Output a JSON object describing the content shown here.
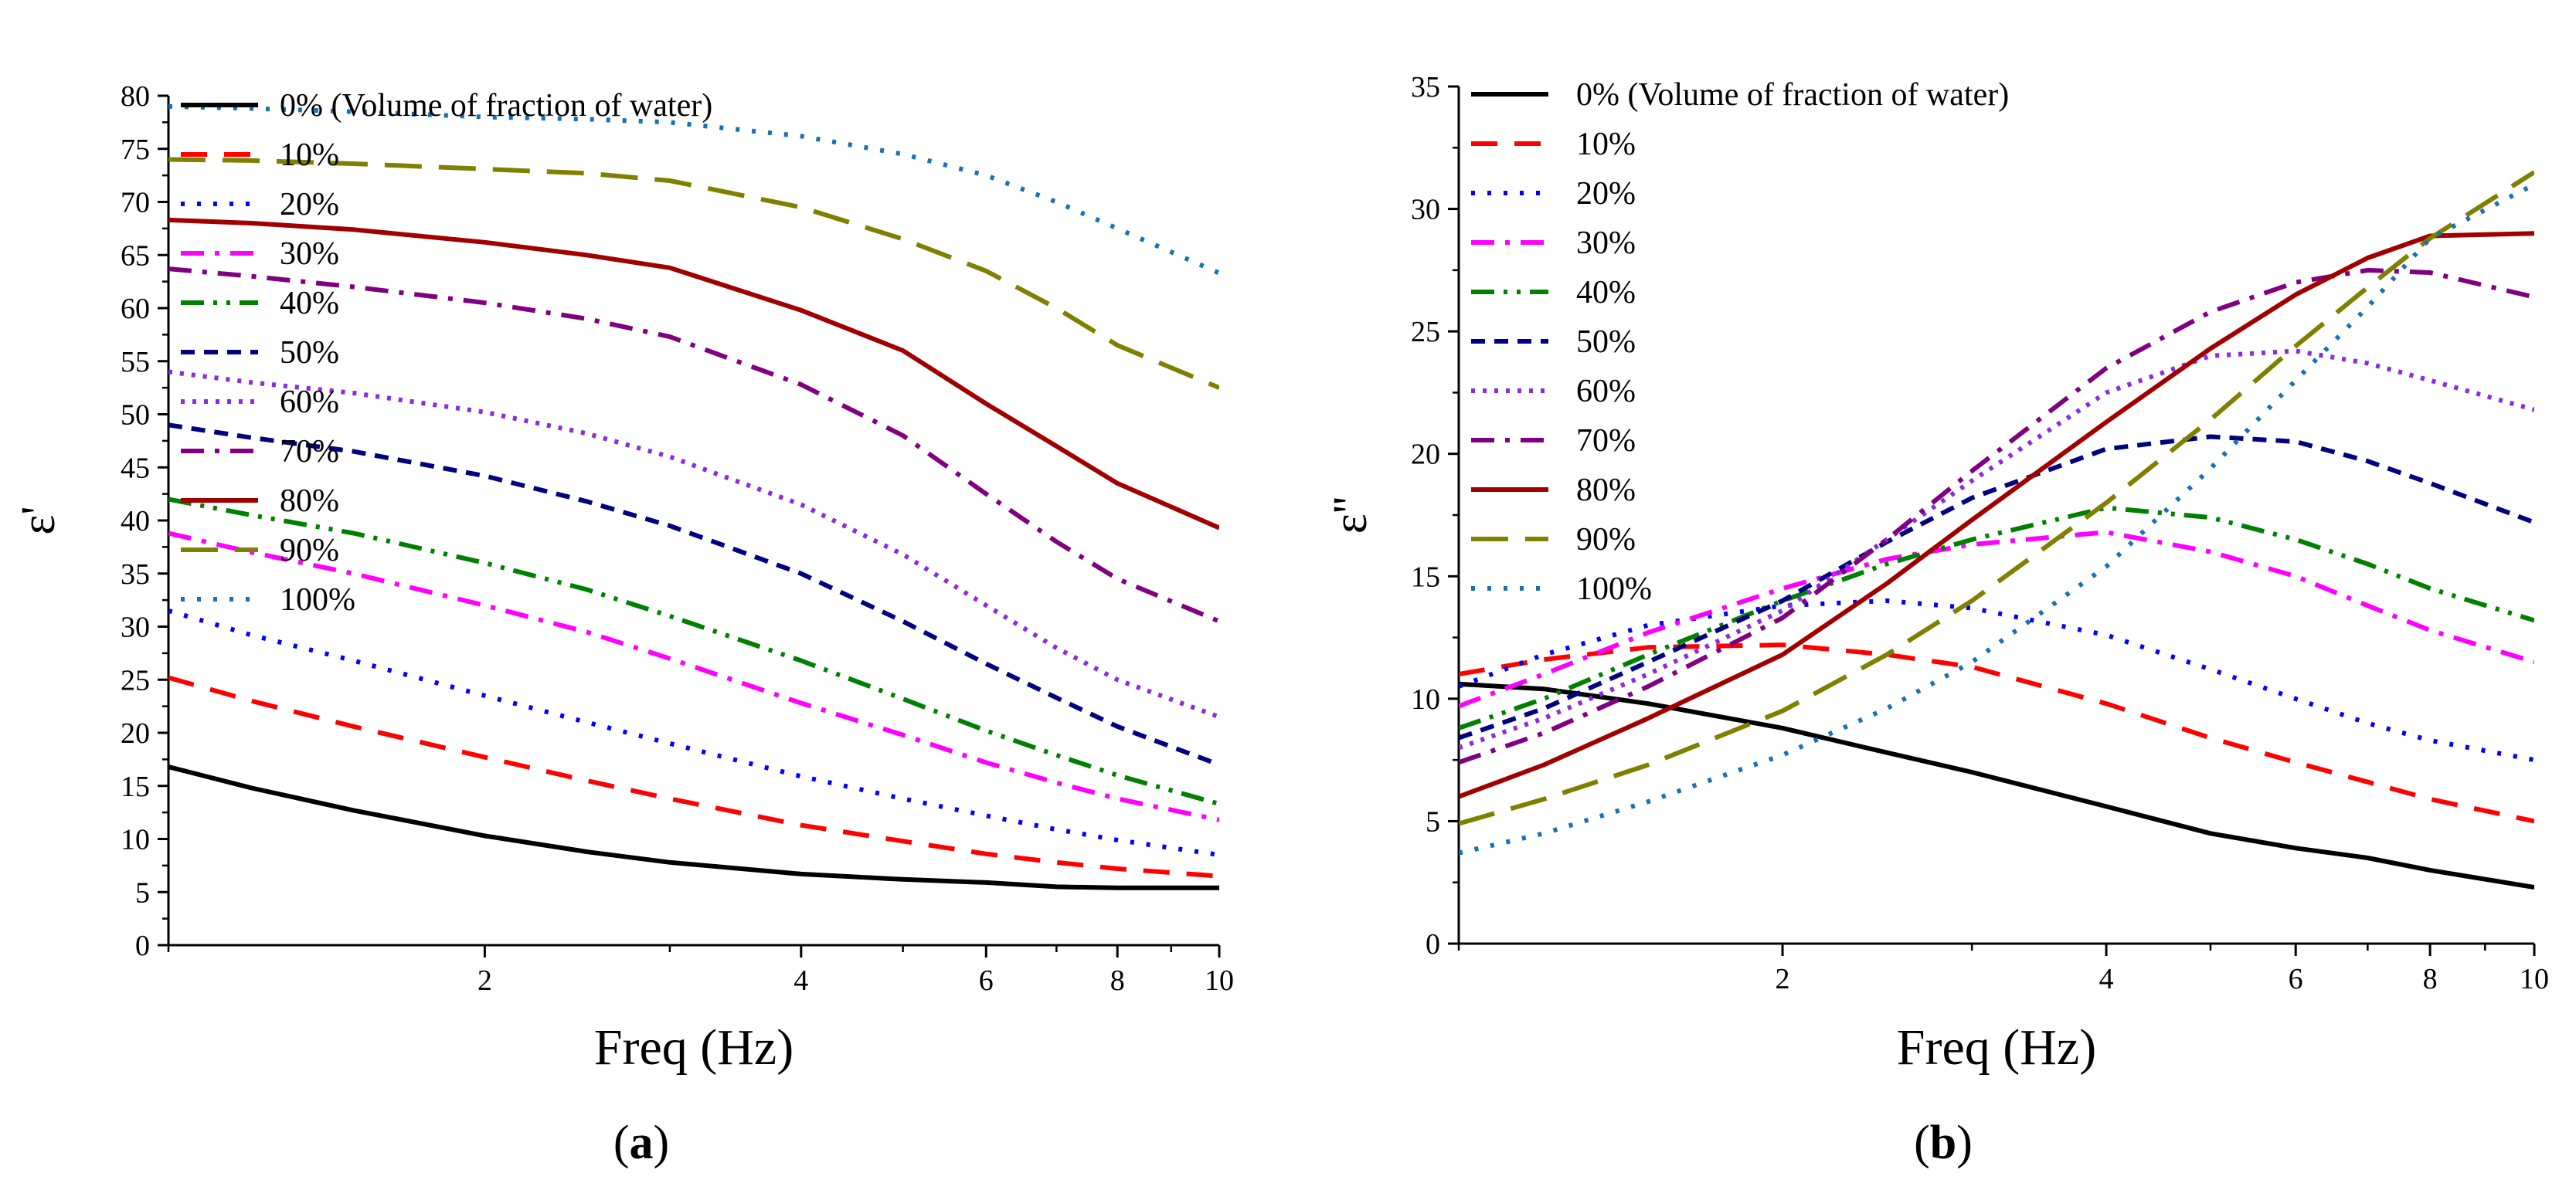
{
  "chart_data": [
    {
      "type": "line",
      "panel_label": "(a)",
      "xlabel": "Freq (Hz)",
      "ylabel": "ε'",
      "x_scale": "log",
      "xlim": [
        1,
        10
      ],
      "ylim": [
        0,
        80
      ],
      "x_ticks": [
        2,
        4,
        6,
        8,
        10
      ],
      "x_tick_labels": [
        "2",
        "4",
        "6",
        "8",
        "10"
      ],
      "y_ticks": [
        0,
        5,
        10,
        15,
        20,
        25,
        30,
        35,
        40,
        45,
        50,
        55,
        60,
        65,
        70,
        75,
        80
      ],
      "y_tick_labels": [
        "0",
        "5",
        "10",
        "15",
        "20",
        "25",
        "30",
        "35",
        "40",
        "45",
        "50",
        "55",
        "60",
        "65",
        "70",
        "75",
        "80"
      ],
      "legend_position": "top-left",
      "x": [
        1,
        1.2,
        1.5,
        2,
        2.5,
        3,
        4,
        5,
        6,
        7,
        8,
        10
      ],
      "series": [
        {
          "name": "0% (Volume of fraction of water)",
          "color": "#000000",
          "dash": "solid",
          "values": [
            16.8,
            14.8,
            12.7,
            10.3,
            8.8,
            7.8,
            6.7,
            6.2,
            5.9,
            5.5,
            5.4,
            5.4
          ]
        },
        {
          "name": "10%",
          "color": "#ff0000",
          "dash": "dash",
          "values": [
            25.2,
            23.0,
            20.6,
            17.7,
            15.5,
            13.8,
            11.3,
            9.8,
            8.6,
            7.8,
            7.2,
            6.5
          ]
        },
        {
          "name": "20%",
          "color": "#0000ff",
          "dash": "dot",
          "values": [
            31.5,
            29.2,
            26.8,
            23.5,
            21.0,
            19.0,
            15.9,
            13.8,
            12.2,
            10.9,
            9.9,
            8.5
          ]
        },
        {
          "name": "30%",
          "color": "#ff00ff",
          "dash": "dashdot",
          "values": [
            38.8,
            37.0,
            35.0,
            32.0,
            29.5,
            27.0,
            22.8,
            19.8,
            17.2,
            15.3,
            13.8,
            11.8
          ]
        },
        {
          "name": "40%",
          "color": "#008000",
          "dash": "dashdotdot",
          "values": [
            42.0,
            40.5,
            38.8,
            36.0,
            33.5,
            31.0,
            26.8,
            23.2,
            20.2,
            17.9,
            16.0,
            13.3
          ]
        },
        {
          "name": "50%",
          "color": "#000080",
          "dash": "shortdash",
          "values": [
            49.0,
            47.8,
            46.5,
            44.2,
            41.8,
            39.5,
            35.0,
            30.5,
            26.5,
            23.3,
            20.6,
            17.0
          ]
        },
        {
          "name": "60%",
          "color": "#8a2be2",
          "dash": "shortdot",
          "values": [
            54.0,
            53.0,
            52.0,
            50.2,
            48.2,
            46.0,
            41.5,
            36.8,
            32.0,
            28.0,
            25.0,
            21.5
          ]
        },
        {
          "name": "70%",
          "color": "#800080",
          "dash": "dashdot",
          "values": [
            63.7,
            63.0,
            62.0,
            60.5,
            59.0,
            57.3,
            52.8,
            48.0,
            42.5,
            38.0,
            34.5,
            30.5
          ]
        },
        {
          "name": "80%",
          "color": "#a00000",
          "dash": "solid",
          "values": [
            68.3,
            68.0,
            67.4,
            66.2,
            65.0,
            63.8,
            59.8,
            56.0,
            51.0,
            47.0,
            43.5,
            39.3
          ]
        },
        {
          "name": "90%",
          "color": "#808000",
          "dash": "longdash",
          "values": [
            74.0,
            73.9,
            73.6,
            73.1,
            72.7,
            72.0,
            69.5,
            66.5,
            63.5,
            60.0,
            56.5,
            52.5
          ]
        },
        {
          "name": "100%",
          "color": "#1a6fb5",
          "dash": "dot",
          "values": [
            79.0,
            78.8,
            78.5,
            78.0,
            77.8,
            77.5,
            76.2,
            74.5,
            72.5,
            70.0,
            67.5,
            63.3
          ]
        }
      ]
    },
    {
      "type": "line",
      "panel_label": "(b)",
      "xlabel": "Freq (Hz)",
      "ylabel": "ε''",
      "x_scale": "log",
      "xlim": [
        1,
        10
      ],
      "ylim": [
        0,
        35
      ],
      "x_ticks": [
        2,
        4,
        6,
        8,
        10
      ],
      "x_tick_labels": [
        "2",
        "4",
        "6",
        "8",
        "10"
      ],
      "y_ticks": [
        0,
        5,
        10,
        15,
        20,
        25,
        30,
        35
      ],
      "y_tick_labels": [
        "0",
        "5",
        "10",
        "15",
        "20",
        "25",
        "30",
        "35"
      ],
      "legend_position": "top-left",
      "x": [
        1,
        1.2,
        1.5,
        2,
        2.5,
        3,
        4,
        5,
        6,
        7,
        8,
        10
      ],
      "series": [
        {
          "name": "0% (Volume of fraction of water)",
          "color": "#000000",
          "dash": "solid",
          "values": [
            10.6,
            10.4,
            9.8,
            8.8,
            7.8,
            7.0,
            5.6,
            4.5,
            3.9,
            3.5,
            3.0,
            2.3
          ]
        },
        {
          "name": "10%",
          "color": "#ff0000",
          "dash": "dash",
          "values": [
            11.0,
            11.6,
            12.1,
            12.2,
            11.8,
            11.3,
            9.8,
            8.4,
            7.4,
            6.6,
            5.9,
            5.0
          ]
        },
        {
          "name": "20%",
          "color": "#0000ff",
          "dash": "dot",
          "values": [
            10.5,
            11.8,
            13.0,
            13.8,
            14.0,
            13.7,
            12.6,
            11.2,
            10.0,
            9.0,
            8.3,
            7.5
          ]
        },
        {
          "name": "30%",
          "color": "#ff00ff",
          "dash": "dashdot",
          "values": [
            9.7,
            11.0,
            12.7,
            14.5,
            15.7,
            16.3,
            16.8,
            16.0,
            15.0,
            13.8,
            12.8,
            11.5
          ]
        },
        {
          "name": "40%",
          "color": "#008000",
          "dash": "dashdotdot",
          "values": [
            8.8,
            10.0,
            11.8,
            14.0,
            15.5,
            16.5,
            17.8,
            17.4,
            16.5,
            15.5,
            14.5,
            13.2
          ]
        },
        {
          "name": "50%",
          "color": "#000080",
          "dash": "shortdash",
          "values": [
            8.4,
            9.6,
            11.5,
            14.0,
            16.4,
            18.2,
            20.2,
            20.7,
            20.5,
            19.7,
            18.8,
            17.2
          ]
        },
        {
          "name": "60%",
          "color": "#8a2be2",
          "dash": "shortdot",
          "values": [
            8.0,
            9.2,
            11.0,
            13.6,
            16.5,
            18.9,
            22.5,
            24.0,
            24.2,
            23.7,
            23.0,
            21.8
          ]
        },
        {
          "name": "70%",
          "color": "#800080",
          "dash": "dashdot",
          "values": [
            7.4,
            8.6,
            10.5,
            13.3,
            16.5,
            19.3,
            23.5,
            25.8,
            27.0,
            27.5,
            27.4,
            26.4
          ]
        },
        {
          "name": "80%",
          "color": "#a00000",
          "dash": "solid",
          "values": [
            6.0,
            7.3,
            9.2,
            11.8,
            14.7,
            17.3,
            21.3,
            24.3,
            26.5,
            28.0,
            28.9,
            29.0
          ]
        },
        {
          "name": "90%",
          "color": "#808000",
          "dash": "longdash",
          "values": [
            4.9,
            5.9,
            7.3,
            9.5,
            11.8,
            14.0,
            18.0,
            21.4,
            24.4,
            26.8,
            28.8,
            31.5
          ]
        },
        {
          "name": "100%",
          "color": "#1a6fb5",
          "dash": "dot",
          "values": [
            3.7,
            4.5,
            5.8,
            7.7,
            9.6,
            11.5,
            15.4,
            19.4,
            23.0,
            26.0,
            28.8,
            31.0
          ]
        }
      ]
    }
  ]
}
